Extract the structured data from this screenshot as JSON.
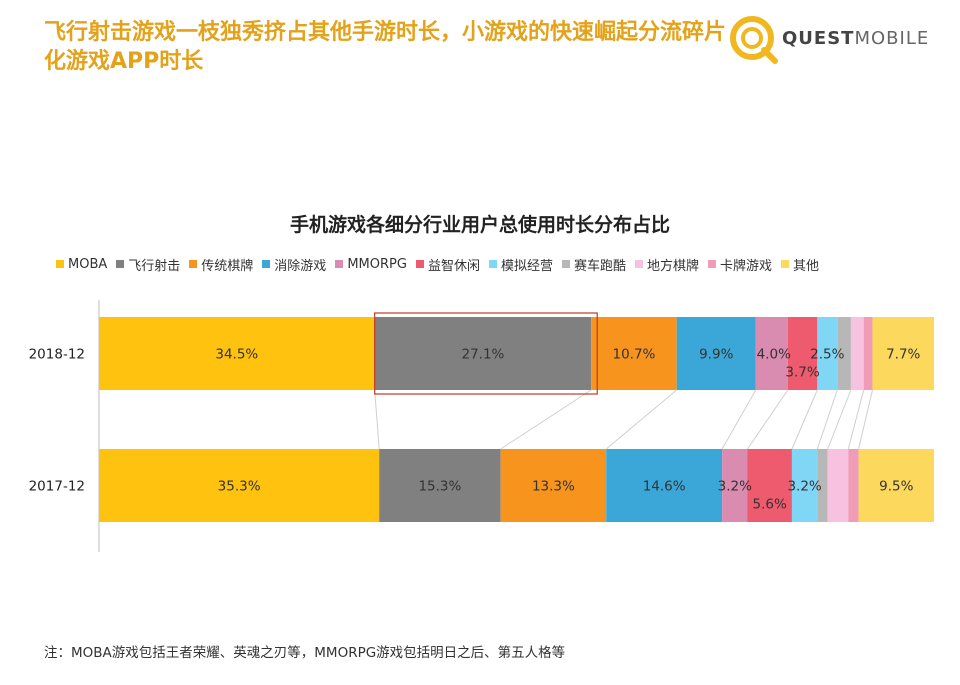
{
  "headline": "飞行射击游戏一枝独秀挤占其他手游时长，小游戏的快速崛起分流碎片化游戏APP时长",
  "logo": {
    "text_bold": "QUEST",
    "text_light": "MOBILE",
    "icon_name": "quest-mobile-logo-icon",
    "color": "#f0b81e"
  },
  "footnote": "注：MOBA游戏包括王者荣耀、英魂之刃等，MMORPG游戏包括明日之后、第五人格等",
  "chart_data": {
    "type": "bar",
    "orientation": "horizontal",
    "stacked": "100%",
    "title": "手机游戏各细分行业用户总使用时长分布占比",
    "legend_position": "top",
    "categories": [
      "2018-12",
      "2017-12"
    ],
    "series": [
      {
        "name": "MOBA",
        "color": "#ffc20e",
        "values": [
          34.5,
          35.3
        ],
        "labels": [
          "34.5%",
          "35.3%"
        ]
      },
      {
        "name": "飞行射击",
        "color": "#808080",
        "values": [
          27.1,
          15.3
        ],
        "labels": [
          "27.1%",
          "15.3%"
        ]
      },
      {
        "name": "传统棋牌",
        "color": "#f7941d",
        "values": [
          10.7,
          13.3
        ],
        "labels": [
          "10.7%",
          "13.3%"
        ]
      },
      {
        "name": "消除游戏",
        "color": "#3aa7d8",
        "values": [
          9.9,
          14.6
        ],
        "labels": [
          "9.9%",
          "14.6%"
        ]
      },
      {
        "name": "MMORPG",
        "color": "#d98bb0",
        "values": [
          4.0,
          3.2
        ],
        "labels": [
          "4.0%",
          "3.2%"
        ]
      },
      {
        "name": "益智休闲",
        "color": "#ee5b6e",
        "values": [
          3.7,
          5.6
        ],
        "labels": [
          "3.7%",
          "5.6%"
        ]
      },
      {
        "name": "模拟经营",
        "color": "#7fd6f5",
        "values": [
          2.5,
          3.2
        ],
        "labels": [
          "2.5%",
          "3.2%"
        ]
      },
      {
        "name": "赛车跑酷",
        "color": "#b7b7b7",
        "values": [
          1.7,
          1.3
        ],
        "labels": [
          "",
          ""
        ]
      },
      {
        "name": "地方棋牌",
        "color": "#f6c2e0",
        "values": [
          1.6,
          2.6
        ],
        "labels": [
          "",
          ""
        ]
      },
      {
        "name": "卡牌游戏",
        "color": "#f19cb6",
        "values": [
          1.1,
          1.3
        ],
        "labels": [
          "",
          ""
        ]
      },
      {
        "name": "其他",
        "color": "#fcd95c",
        "values": [
          7.7,
          9.5
        ],
        "labels": [
          "7.7%",
          "9.5%"
        ]
      }
    ],
    "highlight": {
      "category": "2018-12",
      "series": "飞行射击",
      "color": "#c0392b"
    },
    "xlim": [
      0,
      100
    ]
  }
}
